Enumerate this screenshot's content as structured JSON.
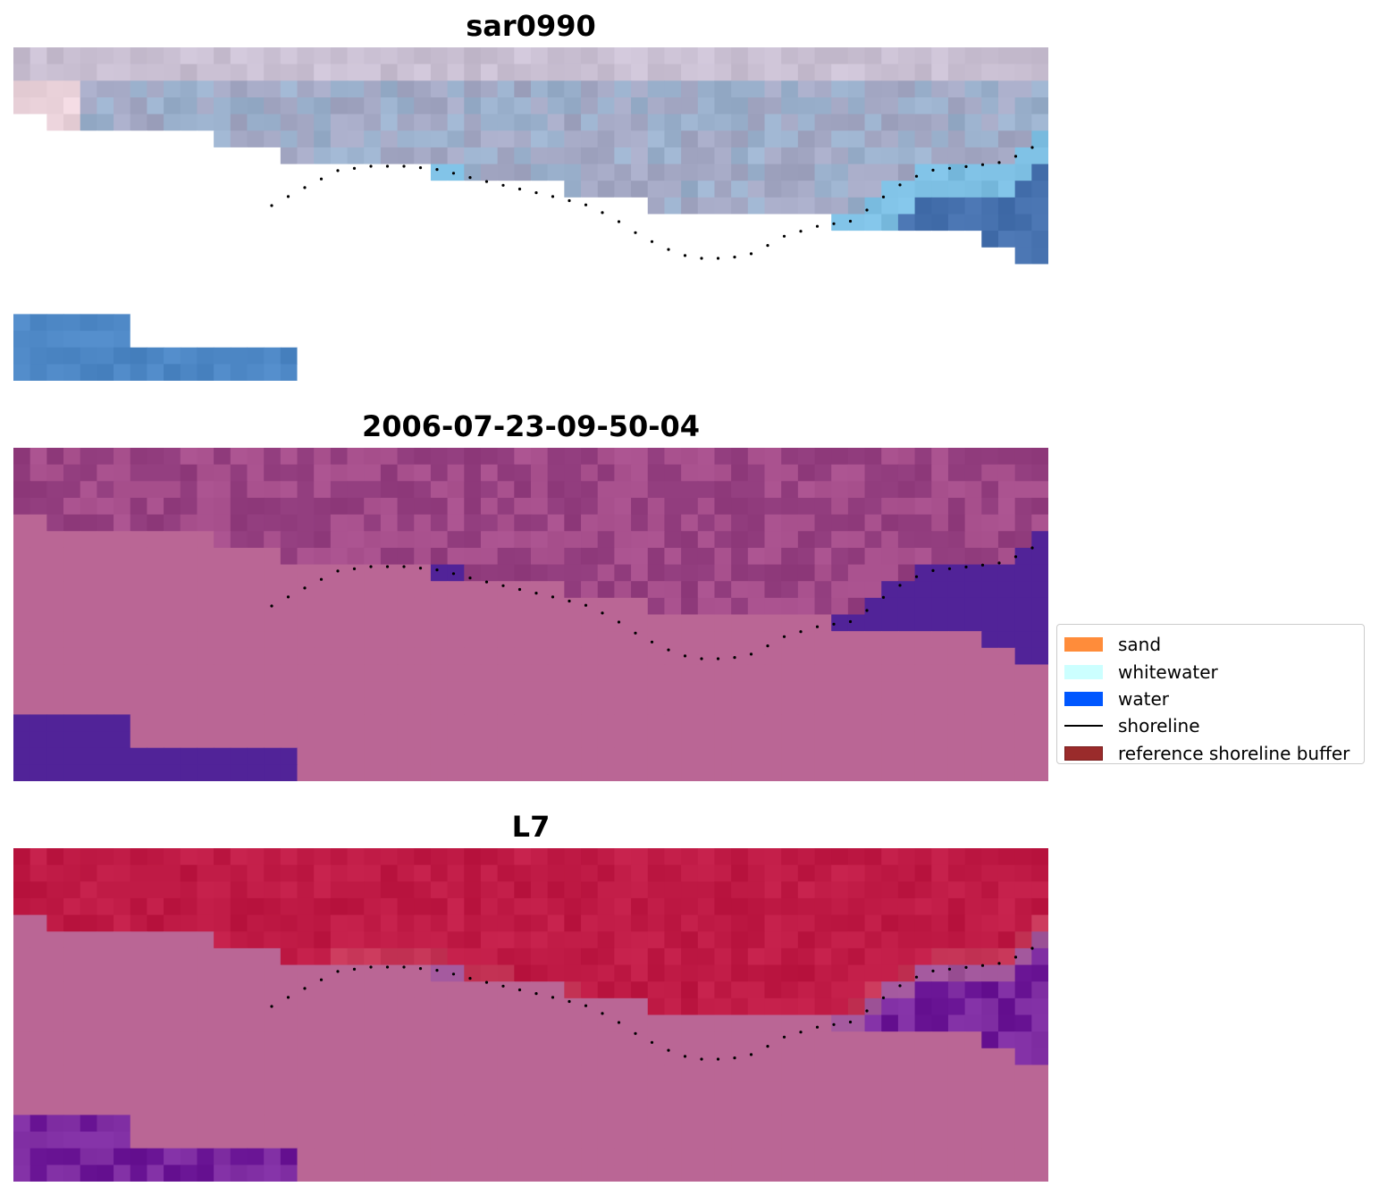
{
  "panels": [
    {
      "title": "sar0990",
      "style": "rgb",
      "colors": {
        "land_light": "#c9bfd2",
        "land_mid": "#a4a8c4",
        "land_blue": "#9ab0cc",
        "land_pink": "#ecd4dc",
        "water_light": "#7dbfe3",
        "water": "#4c86c4",
        "water_dark": "#4570ad",
        "nodata": "#ffffff"
      }
    },
    {
      "title": "2006-07-23-09-50-04",
      "style": "classified",
      "colors": {
        "land": "#943f80",
        "land_light": "#a54d8a",
        "water": "#512398",
        "nodata": "#ba6695"
      }
    },
    {
      "title": "L7",
      "style": "index",
      "colors": {
        "land": "#bf1a45",
        "land_light": "#c63557",
        "transition": "#a0559a",
        "water": "#6b1696",
        "water_light": "#7d2ba0",
        "nodata": "#ba6695"
      }
    }
  ],
  "legend": {
    "items": [
      {
        "label": "sand",
        "color": "#ff8c3a",
        "kind": "patch"
      },
      {
        "label": "whitewater",
        "color": "#ccffff",
        "kind": "patch"
      },
      {
        "label": "water",
        "color": "#0057ff",
        "kind": "patch"
      },
      {
        "label": "shoreline",
        "color": "#000000",
        "kind": "line"
      },
      {
        "label": "reference shoreline buffer",
        "color": "#9a2b2b",
        "kind": "patch"
      }
    ]
  }
}
